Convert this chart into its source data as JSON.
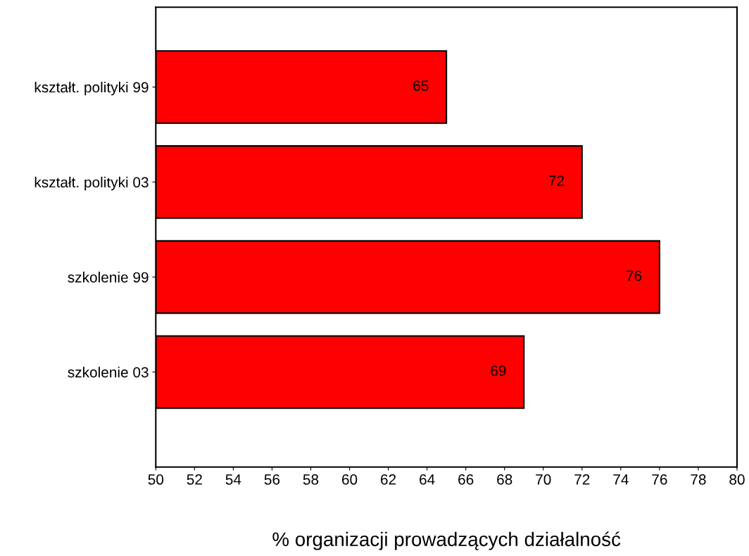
{
  "chart_data": {
    "type": "bar",
    "orientation": "horizontal",
    "xlabel": "% organizacji prowadzących działalność",
    "categories": [
      "kształt. polityki 99",
      "kształt. polityki 03",
      "szkolenie 99",
      "szkolenie 03"
    ],
    "values": [
      65,
      72,
      76,
      69
    ],
    "color": "#ff0000",
    "data_labels": true,
    "xlim": [
      50,
      80
    ],
    "xticks": [
      50,
      52,
      54,
      56,
      58,
      60,
      62,
      64,
      66,
      68,
      70,
      72,
      74,
      76,
      78,
      80
    ],
    "grid": false,
    "legend": false
  }
}
